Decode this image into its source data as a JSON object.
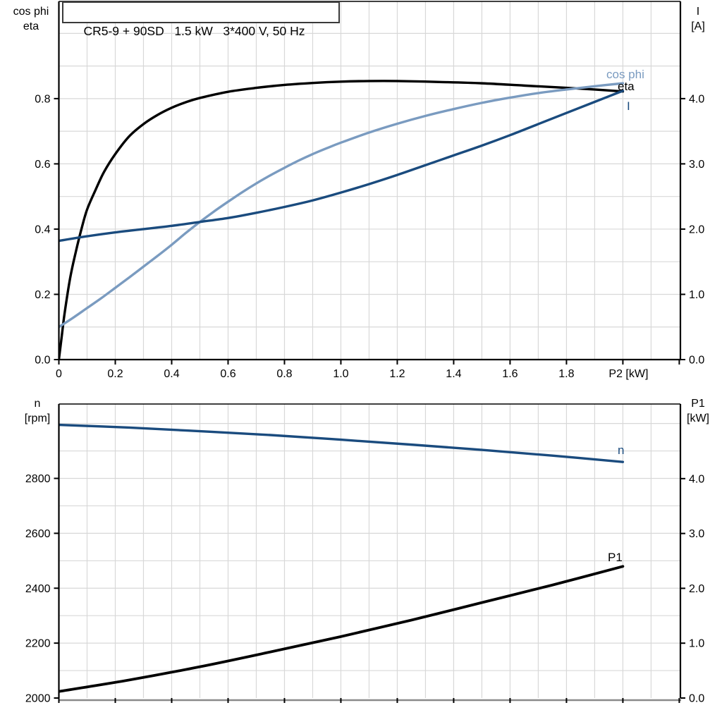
{
  "title": "CR5-9 + 90SD   1.5 kW   3*400 V, 50 Hz",
  "colors": {
    "black": "#000000",
    "dark_blue": "#1A4B7E",
    "light_blue": "#7A9BC0",
    "grid": "#D8D8D8",
    "frame": "#000000",
    "bottom_frame_gray": "#8A8A8A",
    "text": "#000000"
  },
  "chart_data": [
    {
      "type": "line",
      "title": "CR5-9 + 90SD   1.5 kW   3*400 V, 50 Hz",
      "x": {
        "min": 0,
        "max": 2.204,
        "minor": 0.1,
        "major": 0.2,
        "unit_label": "P2 [kW]",
        "unit_label_at": 2.02,
        "tick_labels": [
          [
            0,
            "0"
          ],
          [
            0.2,
            "0.2"
          ],
          [
            0.4,
            "0.4"
          ],
          [
            0.6,
            "0.6"
          ],
          [
            0.8,
            "0.8"
          ],
          [
            1.0,
            "1.0"
          ],
          [
            1.2,
            "1.2"
          ],
          [
            1.4,
            "1.4"
          ],
          [
            1.6,
            "1.6"
          ],
          [
            1.8,
            "1.8"
          ]
        ]
      },
      "y_left": {
        "min": 0,
        "max": 1.098,
        "minor": 0.1,
        "title": [
          "cos phi",
          "eta"
        ],
        "ticks": [
          [
            0,
            "0.0"
          ],
          [
            0.2,
            "0.2"
          ],
          [
            0.4,
            "0.4"
          ],
          [
            0.6,
            "0.6"
          ],
          [
            0.8,
            "0.8"
          ]
        ]
      },
      "y_right": {
        "min": 0,
        "max": 5.49,
        "minor": 0.5,
        "title": [
          "I",
          "[A]"
        ],
        "ticks": [
          [
            0,
            "0.0"
          ],
          [
            1,
            "1.0"
          ],
          [
            2,
            "2.0"
          ],
          [
            3,
            "3.0"
          ],
          [
            4,
            "4.0"
          ]
        ]
      },
      "grid": true,
      "bottom_frame": "black",
      "series": [
        {
          "name": "eta",
          "axis": "left",
          "color": "#000000",
          "width": 3.4,
          "label": {
            "text": "eta",
            "x": 876,
            "y": 128
          },
          "points": [
            [
              0,
              0
            ],
            [
              0.01,
              0.07
            ],
            [
              0.02,
              0.14
            ],
            [
              0.04,
              0.25
            ],
            [
              0.06,
              0.33
            ],
            [
              0.08,
              0.4
            ],
            [
              0.1,
              0.46
            ],
            [
              0.13,
              0.52
            ],
            [
              0.16,
              0.575
            ],
            [
              0.2,
              0.63
            ],
            [
              0.25,
              0.685
            ],
            [
              0.3,
              0.722
            ],
            [
              0.35,
              0.75
            ],
            [
              0.4,
              0.772
            ],
            [
              0.45,
              0.789
            ],
            [
              0.5,
              0.802
            ],
            [
              0.6,
              0.821
            ],
            [
              0.7,
              0.833
            ],
            [
              0.8,
              0.842
            ],
            [
              0.9,
              0.848
            ],
            [
              1.0,
              0.852
            ],
            [
              1.1,
              0.854
            ],
            [
              1.2,
              0.854
            ],
            [
              1.35,
              0.851
            ],
            [
              1.5,
              0.847
            ],
            [
              1.65,
              0.84
            ],
            [
              1.8,
              0.833
            ],
            [
              1.9,
              0.828
            ],
            [
              2.0,
              0.822
            ]
          ]
        },
        {
          "name": "cos phi",
          "axis": "left",
          "color": "#7A9BC0",
          "width": 3.4,
          "label": {
            "text": "cos phi",
            "x": 860,
            "y": 111
          },
          "points": [
            [
              0,
              0.1
            ],
            [
              0.05,
              0.128
            ],
            [
              0.1,
              0.158
            ],
            [
              0.15,
              0.188
            ],
            [
              0.2,
              0.22
            ],
            [
              0.25,
              0.252
            ],
            [
              0.3,
              0.285
            ],
            [
              0.35,
              0.318
            ],
            [
              0.4,
              0.352
            ],
            [
              0.45,
              0.388
            ],
            [
              0.5,
              0.422
            ],
            [
              0.55,
              0.454
            ],
            [
              0.6,
              0.484
            ],
            [
              0.65,
              0.513
            ],
            [
              0.7,
              0.54
            ],
            [
              0.75,
              0.565
            ],
            [
              0.8,
              0.588
            ],
            [
              0.85,
              0.61
            ],
            [
              0.9,
              0.63
            ],
            [
              0.95,
              0.648
            ],
            [
              1.0,
              0.665
            ],
            [
              1.1,
              0.696
            ],
            [
              1.2,
              0.723
            ],
            [
              1.3,
              0.747
            ],
            [
              1.4,
              0.768
            ],
            [
              1.5,
              0.787
            ],
            [
              1.6,
              0.803
            ],
            [
              1.7,
              0.817
            ],
            [
              1.8,
              0.828
            ],
            [
              1.9,
              0.838
            ],
            [
              2.0,
              0.847
            ]
          ]
        },
        {
          "name": "I",
          "axis": "right",
          "color": "#1A4B7E",
          "width": 3.4,
          "label": {
            "text": "I",
            "x": 889,
            "y": 156
          },
          "points": [
            [
              0,
              1.82
            ],
            [
              0.1,
              1.89
            ],
            [
              0.2,
              1.95
            ],
            [
              0.3,
              2.0
            ],
            [
              0.4,
              2.05
            ],
            [
              0.5,
              2.11
            ],
            [
              0.6,
              2.17
            ],
            [
              0.7,
              2.25
            ],
            [
              0.8,
              2.34
            ],
            [
              0.9,
              2.44
            ],
            [
              1.0,
              2.56
            ],
            [
              1.1,
              2.69
            ],
            [
              1.2,
              2.83
            ],
            [
              1.3,
              2.98
            ],
            [
              1.4,
              3.13
            ],
            [
              1.5,
              3.28
            ],
            [
              1.6,
              3.44
            ],
            [
              1.7,
              3.61
            ],
            [
              1.8,
              3.78
            ],
            [
              1.9,
              3.95
            ],
            [
              2.0,
              4.12
            ]
          ]
        }
      ]
    },
    {
      "type": "line",
      "x": {
        "min": 0,
        "max": 2.204,
        "minor": 0.1,
        "major": 0.2,
        "unit_label": "",
        "unit_label_at": 2.02,
        "tick_labels": []
      },
      "y_left": {
        "min": 2000,
        "max": 3071,
        "minor": 100,
        "title": [
          "n",
          "[rpm]"
        ],
        "ticks": [
          [
            2000,
            "2000"
          ],
          [
            2200,
            "2200"
          ],
          [
            2400,
            "2400"
          ],
          [
            2600,
            "2600"
          ],
          [
            2800,
            "2800"
          ]
        ]
      },
      "y_right": {
        "min": 0,
        "max": 5.36,
        "minor": 0.5,
        "title": [
          "P1",
          "[kW]"
        ],
        "ticks": [
          [
            0,
            "0.0"
          ],
          [
            1,
            "1.0"
          ],
          [
            2,
            "2.0"
          ],
          [
            3,
            "3.0"
          ],
          [
            4,
            "4.0"
          ]
        ]
      },
      "grid": true,
      "bottom_frame": "gray",
      "series": [
        {
          "name": "n",
          "axis": "left",
          "color": "#1A4B7E",
          "width": 3.4,
          "label": {
            "text": "n",
            "x": 876,
            "y": 644
          },
          "points": [
            [
              0,
              2995
            ],
            [
              0.25,
              2985
            ],
            [
              0.5,
              2972
            ],
            [
              0.75,
              2958
            ],
            [
              1.0,
              2941
            ],
            [
              1.25,
              2923
            ],
            [
              1.5,
              2904
            ],
            [
              1.75,
              2883
            ],
            [
              2.0,
              2860
            ]
          ]
        },
        {
          "name": "P1",
          "axis": "right",
          "color": "#000000",
          "width": 3.8,
          "label": {
            "text": "P1",
            "x": 862,
            "y": 796
          },
          "points": [
            [
              0,
              0.12
            ],
            [
              0.25,
              0.33
            ],
            [
              0.5,
              0.57
            ],
            [
              0.75,
              0.84
            ],
            [
              1.0,
              1.12
            ],
            [
              1.25,
              1.42
            ],
            [
              1.5,
              1.74
            ],
            [
              1.75,
              2.06
            ],
            [
              2.0,
              2.4
            ]
          ]
        }
      ]
    }
  ]
}
